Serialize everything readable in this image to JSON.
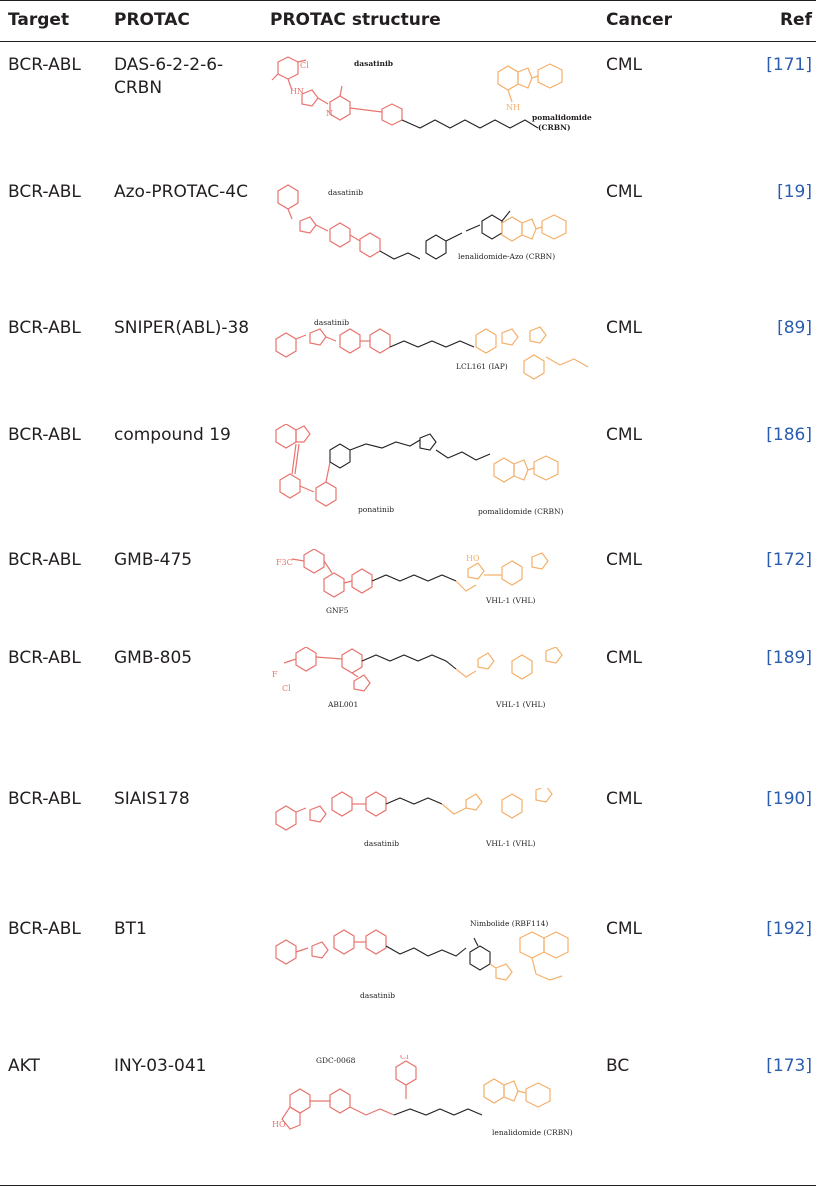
{
  "header": {
    "target": "Target",
    "protac": "PROTAC",
    "structure": "PROTAC structure",
    "cancer": "Cancer",
    "ref": "Ref"
  },
  "colors": {
    "warhead": "#e8746e",
    "e3_ligand": "#f5b06a",
    "linker": "#231f20",
    "ref_link": "#2a5db0"
  },
  "rows": [
    {
      "target": "BCR-ABL",
      "protac": "DAS-6-2-2-6-CRBN",
      "cancer": "CML",
      "ref": "[171]",
      "labels": {
        "warhead": "dasatinib",
        "e3": "pomalidomide",
        "e3b": "(CRBN)"
      }
    },
    {
      "target": "BCR-ABL",
      "protac": "Azo-PROTAC-4C",
      "cancer": "CML",
      "ref": "[19]",
      "labels": {
        "warhead": "dasatinib",
        "e3": "lenalidomide-Azo (CRBN)"
      }
    },
    {
      "target": "BCR-ABL",
      "protac": "SNIPER(ABL)-38",
      "cancer": "CML",
      "ref": "[89]",
      "labels": {
        "warhead": "dasatinib",
        "e3": "LCL161 (IAP)"
      }
    },
    {
      "target": "BCR-ABL",
      "protac": "compound 19",
      "cancer": "CML",
      "ref": "[186]",
      "labels": {
        "warhead": "ponatinib",
        "e3": "pomalidomide (CRBN)"
      }
    },
    {
      "target": "BCR-ABL",
      "protac": "GMB-475",
      "cancer": "CML",
      "ref": "[172]",
      "labels": {
        "warhead": "GNF5",
        "e3": "VHL-1 (VHL)"
      }
    },
    {
      "target": "BCR-ABL",
      "protac": "GMB-805",
      "cancer": "CML",
      "ref": "[189]",
      "labels": {
        "warhead": "ABL001",
        "e3": "VHL-1 (VHL)"
      }
    },
    {
      "target": "BCR-ABL",
      "protac": "SIAIS178",
      "cancer": "CML",
      "ref": "[190]",
      "labels": {
        "warhead": "dasatinib",
        "e3": "VHL-1 (VHL)"
      }
    },
    {
      "target": "BCR-ABL",
      "protac": "BT1",
      "cancer": "CML",
      "ref": "[192]",
      "labels": {
        "warhead": "dasatinib",
        "e3": "Nimbolide (RBF114)"
      }
    },
    {
      "target": "AKT",
      "protac": "INY-03-041",
      "cancer": "BC",
      "ref": "[173]",
      "labels": {
        "warhead": "GDC-0068",
        "e3": "lenalidomide (CRBN)"
      }
    }
  ]
}
